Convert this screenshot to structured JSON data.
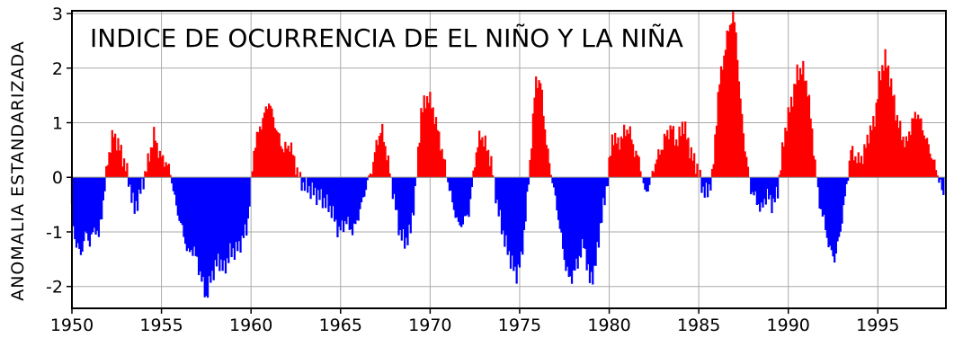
{
  "chart_data": {
    "type": "bar",
    "title": "INDICE DE OCURRENCIA DE EL NIÑO Y LA NIÑA",
    "xlabel": "",
    "ylabel": "ANOMALIA ESTANDARIZADA",
    "xlim": [
      1950,
      1998.8
    ],
    "ylim": [
      -2.4,
      3.05
    ],
    "x_ticks": [
      1950,
      1955,
      1960,
      1965,
      1970,
      1975,
      1980,
      1985,
      1990,
      1995
    ],
    "x_tick_labels": [
      "1950",
      "1955",
      "1960",
      "1965",
      "1970",
      "1975",
      "1980",
      "1985",
      "1990",
      "1995"
    ],
    "y_ticks": [
      3,
      2,
      1,
      0,
      -1,
      -2
    ],
    "y_tick_labels": [
      "3",
      "2",
      "1",
      "0",
      "-1",
      "-2"
    ],
    "grid": true,
    "colors": {
      "positive": "#ff0000",
      "negative": "#0000ff",
      "grid": "#aaaaaa",
      "axis": "#000000"
    },
    "series_keypoints": [
      [
        1950.0,
        -0.6
      ],
      [
        1950.2,
        -1.2
      ],
      [
        1950.5,
        -1.4
      ],
      [
        1950.8,
        -1.0
      ],
      [
        1951.0,
        -1.2
      ],
      [
        1951.3,
        -0.9
      ],
      [
        1951.5,
        -1.1
      ],
      [
        1951.8,
        -0.3
      ],
      [
        1952.0,
        0.3
      ],
      [
        1952.3,
        0.8
      ],
      [
        1952.6,
        0.6
      ],
      [
        1953.0,
        0.2
      ],
      [
        1953.2,
        -0.1
      ],
      [
        1953.5,
        -0.6
      ],
      [
        1953.8,
        -0.3
      ],
      [
        1954.2,
        0.2
      ],
      [
        1954.6,
        0.8
      ],
      [
        1954.9,
        0.4
      ],
      [
        1955.2,
        0.3
      ],
      [
        1955.5,
        0.1
      ],
      [
        1955.8,
        -0.5
      ],
      [
        1956.2,
        -1.0
      ],
      [
        1956.5,
        -1.4
      ],
      [
        1956.8,
        -1.3
      ],
      [
        1957.2,
        -1.8
      ],
      [
        1957.5,
        -2.2
      ],
      [
        1957.8,
        -1.8
      ],
      [
        1958.2,
        -1.5
      ],
      [
        1958.5,
        -1.7
      ],
      [
        1958.8,
        -1.4
      ],
      [
        1959.3,
        -1.3
      ],
      [
        1959.8,
        -0.9
      ],
      [
        1960.2,
        0.6
      ],
      [
        1960.6,
        1.0
      ],
      [
        1961.0,
        1.4
      ],
      [
        1961.4,
        0.9
      ],
      [
        1961.8,
        0.5
      ],
      [
        1962.2,
        0.6
      ],
      [
        1962.5,
        0.2
      ],
      [
        1962.8,
        -0.1
      ],
      [
        1963.2,
        -0.2
      ],
      [
        1963.6,
        -0.3
      ],
      [
        1964.0,
        -0.4
      ],
      [
        1964.5,
        -0.6
      ],
      [
        1964.9,
        -1.0
      ],
      [
        1965.3,
        -0.8
      ],
      [
        1965.7,
        -1.0
      ],
      [
        1966.1,
        -0.6
      ],
      [
        1966.4,
        -0.2
      ],
      [
        1966.8,
        0.2
      ],
      [
        1967.0,
        0.6
      ],
      [
        1967.3,
        0.9
      ],
      [
        1967.6,
        0.4
      ],
      [
        1968.0,
        -0.4
      ],
      [
        1968.3,
        -1.0
      ],
      [
        1968.6,
        -1.2
      ],
      [
        1968.9,
        -1.0
      ],
      [
        1969.2,
        -0.2
      ],
      [
        1969.5,
        1.2
      ],
      [
        1969.9,
        1.5
      ],
      [
        1970.2,
        1.2
      ],
      [
        1970.6,
        0.6
      ],
      [
        1970.9,
        0.1
      ],
      [
        1971.2,
        -0.4
      ],
      [
        1971.6,
        -0.9
      ],
      [
        1971.9,
        -0.8
      ],
      [
        1972.2,
        -0.6
      ],
      [
        1972.5,
        0.3
      ],
      [
        1972.8,
        0.8
      ],
      [
        1973.1,
        0.6
      ],
      [
        1973.4,
        0.3
      ],
      [
        1973.8,
        -0.6
      ],
      [
        1974.2,
        -1.2
      ],
      [
        1974.5,
        -1.5
      ],
      [
        1974.8,
        -1.8
      ],
      [
        1975.1,
        -1.5
      ],
      [
        1975.4,
        -0.5
      ],
      [
        1975.7,
        0.8
      ],
      [
        1975.9,
        1.8
      ],
      [
        1976.2,
        1.7
      ],
      [
        1976.5,
        0.6
      ],
      [
        1976.8,
        0.0
      ],
      [
        1977.2,
        -0.8
      ],
      [
        1977.5,
        -1.5
      ],
      [
        1977.8,
        -1.9
      ],
      [
        1978.2,
        -1.6
      ],
      [
        1978.6,
        -1.2
      ],
      [
        1978.9,
        -1.9
      ],
      [
        1979.2,
        -1.7
      ],
      [
        1979.5,
        -0.9
      ],
      [
        1979.8,
        -0.3
      ],
      [
        1980.0,
        0.2
      ],
      [
        1980.2,
        0.8
      ],
      [
        1980.5,
        0.6
      ],
      [
        1980.8,
        0.8
      ],
      [
        1981.1,
        0.9
      ],
      [
        1981.4,
        0.5
      ],
      [
        1981.7,
        0.3
      ],
      [
        1982.0,
        -0.3
      ],
      [
        1982.3,
        -0.1
      ],
      [
        1982.6,
        0.3
      ],
      [
        1982.9,
        0.5
      ],
      [
        1983.2,
        0.8
      ],
      [
        1983.5,
        0.9
      ],
      [
        1983.8,
        0.6
      ],
      [
        1984.1,
        1.0
      ],
      [
        1984.3,
        0.8
      ],
      [
        1984.6,
        0.4
      ],
      [
        1984.9,
        0.2
      ],
      [
        1985.2,
        -0.2
      ],
      [
        1985.5,
        -0.3
      ],
      [
        1985.8,
        0.1
      ],
      [
        1986.1,
        1.6
      ],
      [
        1986.3,
        2.0
      ],
      [
        1986.6,
        2.6
      ],
      [
        1986.9,
        3.0
      ],
      [
        1987.1,
        2.6
      ],
      [
        1987.3,
        1.5
      ],
      [
        1987.6,
        0.5
      ],
      [
        1987.9,
        -0.2
      ],
      [
        1988.2,
        -0.4
      ],
      [
        1988.5,
        -0.6
      ],
      [
        1988.8,
        -0.3
      ],
      [
        1989.1,
        -0.5
      ],
      [
        1989.4,
        -0.3
      ],
      [
        1989.6,
        0.3
      ],
      [
        1989.9,
        1.0
      ],
      [
        1990.2,
        1.4
      ],
      [
        1990.5,
        1.9
      ],
      [
        1990.8,
        2.0
      ],
      [
        1991.1,
        1.6
      ],
      [
        1991.4,
        0.6
      ],
      [
        1991.7,
        -0.4
      ],
      [
        1992.0,
        -0.8
      ],
      [
        1992.3,
        -1.3
      ],
      [
        1992.6,
        -1.5
      ],
      [
        1992.9,
        -1.0
      ],
      [
        1993.2,
        -0.3
      ],
      [
        1993.5,
        0.5
      ],
      [
        1993.9,
        0.3
      ],
      [
        1994.2,
        0.4
      ],
      [
        1994.5,
        0.8
      ],
      [
        1994.8,
        1.0
      ],
      [
        1995.1,
        1.8
      ],
      [
        1995.4,
        2.2
      ],
      [
        1995.7,
        1.8
      ],
      [
        1996.0,
        1.2
      ],
      [
        1996.3,
        0.8
      ],
      [
        1996.6,
        0.6
      ],
      [
        1996.9,
        1.0
      ],
      [
        1997.2,
        1.2
      ],
      [
        1997.5,
        0.9
      ],
      [
        1997.8,
        0.6
      ],
      [
        1998.1,
        0.3
      ],
      [
        1998.4,
        0.0
      ],
      [
        1998.7,
        -0.4
      ]
    ]
  }
}
